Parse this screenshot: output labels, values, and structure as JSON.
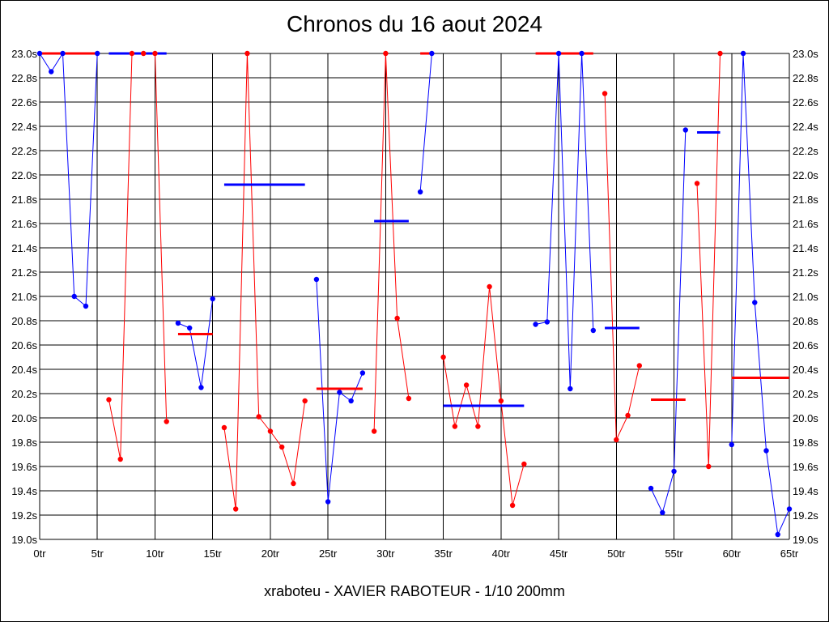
{
  "chart_data": {
    "type": "line",
    "title": "Chronos du 16 aout 2024",
    "footer": "xraboteu - XAVIER RABOTEUR - 1/10 200mm",
    "xlim": [
      0,
      65
    ],
    "ylim": [
      19.0,
      23.0
    ],
    "x_ticks": [
      {
        "value": 0,
        "label": "0tr"
      },
      {
        "value": 5,
        "label": "5tr"
      },
      {
        "value": 10,
        "label": "10tr"
      },
      {
        "value": 15,
        "label": "15tr"
      },
      {
        "value": 20,
        "label": "20tr"
      },
      {
        "value": 25,
        "label": "25tr"
      },
      {
        "value": 30,
        "label": "30tr"
      },
      {
        "value": 35,
        "label": "35tr"
      },
      {
        "value": 40,
        "label": "40tr"
      },
      {
        "value": 45,
        "label": "45tr"
      },
      {
        "value": 50,
        "label": "50tr"
      },
      {
        "value": 55,
        "label": "55tr"
      },
      {
        "value": 60,
        "label": "60tr"
      },
      {
        "value": 65,
        "label": "65tr"
      }
    ],
    "y_ticks": [
      {
        "value": 19.0,
        "label": "19.0s"
      },
      {
        "value": 19.2,
        "label": "19.2s"
      },
      {
        "value": 19.4,
        "label": "19.4s"
      },
      {
        "value": 19.6,
        "label": "19.6s"
      },
      {
        "value": 19.8,
        "label": "19.8s"
      },
      {
        "value": 20.0,
        "label": "20.0s"
      },
      {
        "value": 20.2,
        "label": "20.2s"
      },
      {
        "value": 20.4,
        "label": "20.4s"
      },
      {
        "value": 20.6,
        "label": "20.6s"
      },
      {
        "value": 20.8,
        "label": "20.8s"
      },
      {
        "value": 21.0,
        "label": "21.0s"
      },
      {
        "value": 21.2,
        "label": "21.2s"
      },
      {
        "value": 21.4,
        "label": "21.4s"
      },
      {
        "value": 21.6,
        "label": "21.6s"
      },
      {
        "value": 21.8,
        "label": "21.8s"
      },
      {
        "value": 22.0,
        "label": "22.0s"
      },
      {
        "value": 22.2,
        "label": "22.2s"
      },
      {
        "value": 22.4,
        "label": "22.4s"
      },
      {
        "value": 22.6,
        "label": "22.6s"
      },
      {
        "value": 22.8,
        "label": "22.8s"
      },
      {
        "value": 23.0,
        "label": "23.0s"
      }
    ],
    "grid": true,
    "y_axis_labels_both_sides": true,
    "colors": {
      "blue": "#0000ff",
      "red": "#ff0000",
      "grid": "#000000"
    },
    "segments": [
      {
        "color": "blue",
        "points": [
          [
            0,
            23.0
          ],
          [
            1,
            22.85
          ],
          [
            2,
            23.0
          ],
          [
            3,
            21.0
          ],
          [
            4,
            20.92
          ],
          [
            5,
            23.0
          ]
        ]
      },
      {
        "color": "red",
        "points": [
          [
            6,
            20.15
          ],
          [
            7,
            19.66
          ],
          [
            8,
            23.0
          ],
          [
            9,
            23.0
          ],
          [
            10,
            23.0
          ],
          [
            11,
            19.97
          ]
        ]
      },
      {
        "color": "blue",
        "points": [
          [
            12,
            20.78
          ],
          [
            13,
            20.74
          ],
          [
            14,
            20.25
          ],
          [
            15,
            20.98
          ]
        ]
      },
      {
        "color": "red",
        "points": [
          [
            16,
            19.92
          ],
          [
            17,
            19.25
          ],
          [
            18,
            23.0
          ],
          [
            19,
            20.01
          ],
          [
            20,
            19.89
          ],
          [
            21,
            19.76
          ],
          [
            22,
            19.46
          ],
          [
            23,
            20.14
          ]
        ]
      },
      {
        "color": "blue",
        "points": [
          [
            24,
            21.14
          ],
          [
            25,
            19.31
          ],
          [
            26,
            20.21
          ],
          [
            27,
            20.14
          ],
          [
            28,
            20.37
          ]
        ]
      },
      {
        "color": "red",
        "points": [
          [
            29,
            19.89
          ],
          [
            30,
            23.0
          ],
          [
            31,
            20.82
          ],
          [
            32,
            20.16
          ]
        ]
      },
      {
        "color": "blue",
        "points": [
          [
            33,
            21.86
          ],
          [
            34,
            23.0
          ]
        ]
      },
      {
        "color": "red",
        "points": [
          [
            35,
            20.5
          ],
          [
            36,
            19.93
          ],
          [
            37,
            20.27
          ],
          [
            38,
            19.93
          ],
          [
            39,
            21.08
          ],
          [
            40,
            20.14
          ],
          [
            41,
            19.28
          ],
          [
            42,
            19.62
          ]
        ]
      },
      {
        "color": "blue",
        "points": [
          [
            43,
            20.77
          ],
          [
            44,
            20.79
          ],
          [
            45,
            23.0
          ],
          [
            46,
            20.24
          ],
          [
            47,
            23.0
          ],
          [
            48,
            20.72
          ]
        ]
      },
      {
        "color": "red",
        "points": [
          [
            49,
            22.67
          ],
          [
            50,
            19.82
          ],
          [
            51,
            20.02
          ],
          [
            52,
            20.43
          ]
        ]
      },
      {
        "color": "blue",
        "points": [
          [
            53,
            19.42
          ],
          [
            54,
            19.22
          ],
          [
            55,
            19.56
          ],
          [
            56,
            22.37
          ]
        ]
      },
      {
        "color": "red",
        "points": [
          [
            57,
            21.93
          ],
          [
            58,
            19.6
          ],
          [
            59,
            23.0
          ]
        ]
      },
      {
        "color": "blue",
        "points": [
          [
            60,
            19.78
          ],
          [
            61,
            23.0
          ],
          [
            62,
            20.95
          ],
          [
            63,
            19.73
          ],
          [
            64,
            19.04
          ],
          [
            65,
            19.25
          ]
        ]
      }
    ],
    "averages": [
      {
        "color": "red",
        "x_start": 0,
        "x_end": 5,
        "value": 23.0
      },
      {
        "color": "blue",
        "x_start": 6,
        "x_end": 11,
        "value": 23.0
      },
      {
        "color": "red",
        "x_start": 12,
        "x_end": 15,
        "value": 20.69
      },
      {
        "color": "blue",
        "x_start": 16,
        "x_end": 23,
        "value": 21.92
      },
      {
        "color": "red",
        "x_start": 24,
        "x_end": 28,
        "value": 20.24
      },
      {
        "color": "blue",
        "x_start": 29,
        "x_end": 32,
        "value": 21.62
      },
      {
        "color": "red",
        "x_start": 33,
        "x_end": 34,
        "value": 23.0
      },
      {
        "color": "blue",
        "x_start": 35,
        "x_end": 42,
        "value": 20.1
      },
      {
        "color": "red",
        "x_start": 43,
        "x_end": 48,
        "value": 23.0
      },
      {
        "color": "blue",
        "x_start": 49,
        "x_end": 52,
        "value": 20.74
      },
      {
        "color": "red",
        "x_start": 53,
        "x_end": 56,
        "value": 20.15
      },
      {
        "color": "blue",
        "x_start": 57,
        "x_end": 59,
        "value": 22.35
      },
      {
        "color": "red",
        "x_start": 60,
        "x_end": 65,
        "value": 20.33
      }
    ]
  }
}
